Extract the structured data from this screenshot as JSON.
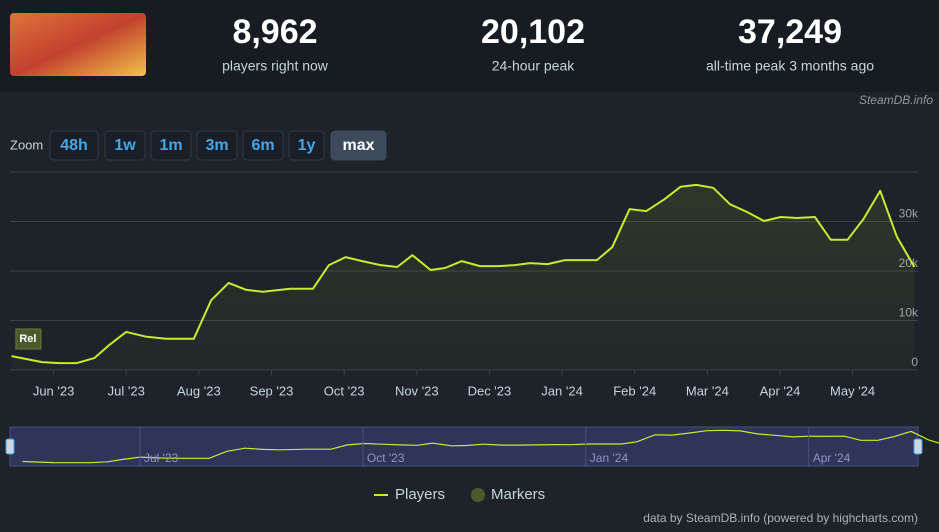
{
  "header": {
    "stats": [
      {
        "value": "8,962",
        "label": "players right now"
      },
      {
        "value": "20,102",
        "label": "24-hour peak"
      },
      {
        "value": "37,249",
        "label": "all-time peak 3 months ago"
      }
    ],
    "source": "SteamDB.info"
  },
  "zoom": {
    "label": "Zoom",
    "buttons": [
      "48h",
      "1w",
      "1m",
      "3m",
      "6m",
      "1y",
      "max"
    ],
    "active": "max"
  },
  "chart_data": {
    "type": "line",
    "xlim": [
      -0.6,
      11.9
    ],
    "xticks": [
      {
        "value": 0,
        "label": "Jun '23"
      },
      {
        "value": 1,
        "label": "Jul '23"
      },
      {
        "value": 2,
        "label": "Aug '23"
      },
      {
        "value": 3,
        "label": "Sep '23"
      },
      {
        "value": 4,
        "label": "Oct '23"
      },
      {
        "value": 5,
        "label": "Nov '23"
      },
      {
        "value": 6,
        "label": "Dec '23"
      },
      {
        "value": 7,
        "label": "Jan '24"
      },
      {
        "value": 8,
        "label": "Feb '24"
      },
      {
        "value": 9,
        "label": "Mar '24"
      },
      {
        "value": 10,
        "label": "Apr '24"
      },
      {
        "value": 11,
        "label": "May '24"
      }
    ],
    "ylim": [
      0,
      40000
    ],
    "yticks": [
      0,
      {
        "value": 10000,
        "label": "10k"
      },
      {
        "value": 20000,
        "label": "20k"
      },
      {
        "value": 30000,
        "label": "30k"
      }
    ],
    "grid": true,
    "series": [
      {
        "name": "Players",
        "color": "#c6eb2f",
        "x": [
          -0.58,
          -0.16,
          0.07,
          0.32,
          0.56,
          0.77,
          1.0,
          1.28,
          1.55,
          1.93,
          2.17,
          2.41,
          2.65,
          2.88,
          3.26,
          3.57,
          3.79,
          4.02,
          4.25,
          4.5,
          4.73,
          4.94,
          5.19,
          5.39,
          5.62,
          5.87,
          6.12,
          6.35,
          6.56,
          6.8,
          7.04,
          7.48,
          7.69,
          7.93,
          8.16,
          8.41,
          8.63,
          8.85,
          9.08,
          9.31,
          9.55,
          9.78,
          10.01,
          10.23,
          10.48,
          10.7,
          10.93,
          11.15,
          11.38,
          11.61,
          11.85
        ],
        "values": [
          2800,
          1600,
          1400,
          1400,
          2400,
          5100,
          7700,
          6700,
          6300,
          6300,
          14100,
          17600,
          16200,
          15800,
          16400,
          16400,
          21200,
          22800,
          22000,
          21200,
          20800,
          23200,
          20200,
          20600,
          22000,
          21000,
          21000,
          21200,
          21600,
          21400,
          22200,
          22200,
          24800,
          32500,
          32100,
          34500,
          37000,
          37400,
          36800,
          33500,
          31900,
          30100,
          30900,
          30700,
          30900,
          26300,
          26300,
          30500,
          36200,
          26900,
          20800
        ]
      }
    ],
    "markers": {
      "name": "Markers",
      "color": "#4b5a2c",
      "items": [
        {
          "x": -0.34,
          "label": "Rel"
        }
      ]
    },
    "navigator": {
      "xticks": [
        {
          "value": 1,
          "label": "Jul '23"
        },
        {
          "value": 4,
          "label": "Oct '23"
        },
        {
          "value": 7,
          "label": "Jan '24"
        },
        {
          "value": 10,
          "label": "Apr '24"
        }
      ]
    },
    "credit": "data by SteamDB.info (powered by highcharts.com)"
  }
}
